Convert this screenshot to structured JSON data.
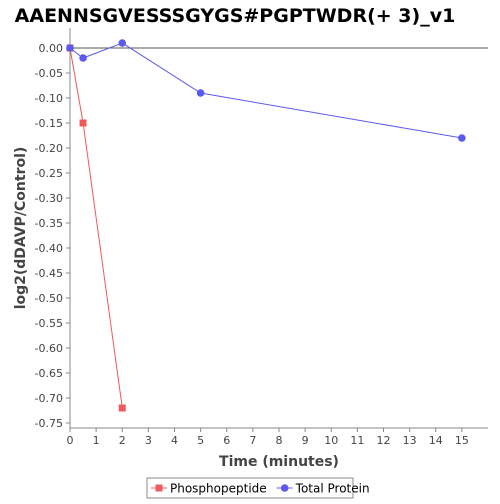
{
  "chart_data": {
    "type": "line",
    "title": "AAENNSGVESSSGYGS#PGPTWDR(+ 3)_v1",
    "xlabel": "Time (minutes)",
    "ylabel": "log2(dDAVP/Control)",
    "xlim": [
      0,
      16
    ],
    "ylim": [
      -0.76,
      0.04
    ],
    "x_ticks": [
      0,
      1,
      2,
      3,
      4,
      5,
      6,
      7,
      8,
      9,
      10,
      11,
      12,
      13,
      14,
      15
    ],
    "x_tick_labels": [
      "0",
      "1",
      "2",
      "3",
      "4",
      "5",
      "6",
      "7",
      "8",
      "9",
      "10",
      "11",
      "12",
      "13",
      "14",
      "15"
    ],
    "y_ticks": [
      0.0,
      -0.05,
      -0.1,
      -0.15,
      -0.2,
      -0.25,
      -0.3,
      -0.35,
      -0.4,
      -0.45,
      -0.5,
      -0.55,
      -0.6,
      -0.65,
      -0.7,
      -0.75
    ],
    "y_tick_labels": [
      "0.00",
      "-0.05",
      "-0.10",
      "-0.15",
      "-0.20",
      "-0.25",
      "-0.30",
      "-0.35",
      "-0.40",
      "-0.45",
      "-0.50",
      "-0.55",
      "-0.60",
      "-0.65",
      "-0.70",
      "-0.75"
    ],
    "reference_line": 0,
    "grid": false,
    "legend_position": "bottom",
    "series": [
      {
        "name": "Phosphopeptide",
        "color": "#f05a5a",
        "marker": "square",
        "x": [
          0,
          0.5,
          2
        ],
        "y": [
          0.0,
          -0.15,
          -0.72
        ]
      },
      {
        "name": "Total Protein",
        "color": "#5a5af0",
        "marker": "circle",
        "x": [
          0,
          0.5,
          2,
          5,
          15
        ],
        "y": [
          0.0,
          -0.02,
          0.01,
          -0.09,
          -0.18
        ]
      }
    ]
  }
}
